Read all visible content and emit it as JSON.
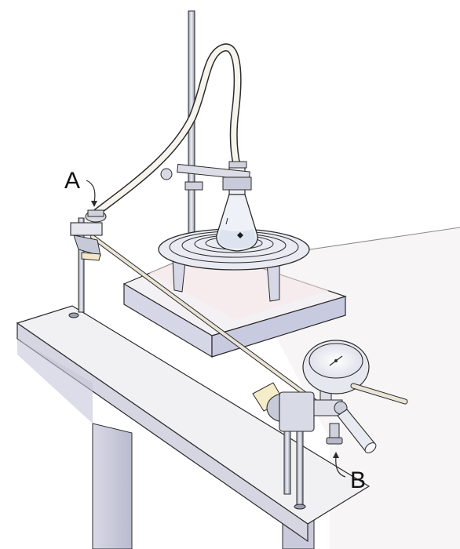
{
  "labels": {
    "a": "A",
    "b": "B"
  },
  "colors": {
    "ink": "#2b2b2b",
    "table_top": "#f1f1f4",
    "table_edge": "#cfd0da",
    "table_leg": "#c9cadb",
    "block_top": "#f6eee8",
    "block_side": "#cfd2e2",
    "metal_light": "#e8e9ef",
    "metal_dark": "#6e7588",
    "glass": "#eef2f8",
    "tube": "#f5f1e8",
    "accent_yellow": "#f5ecc8"
  }
}
